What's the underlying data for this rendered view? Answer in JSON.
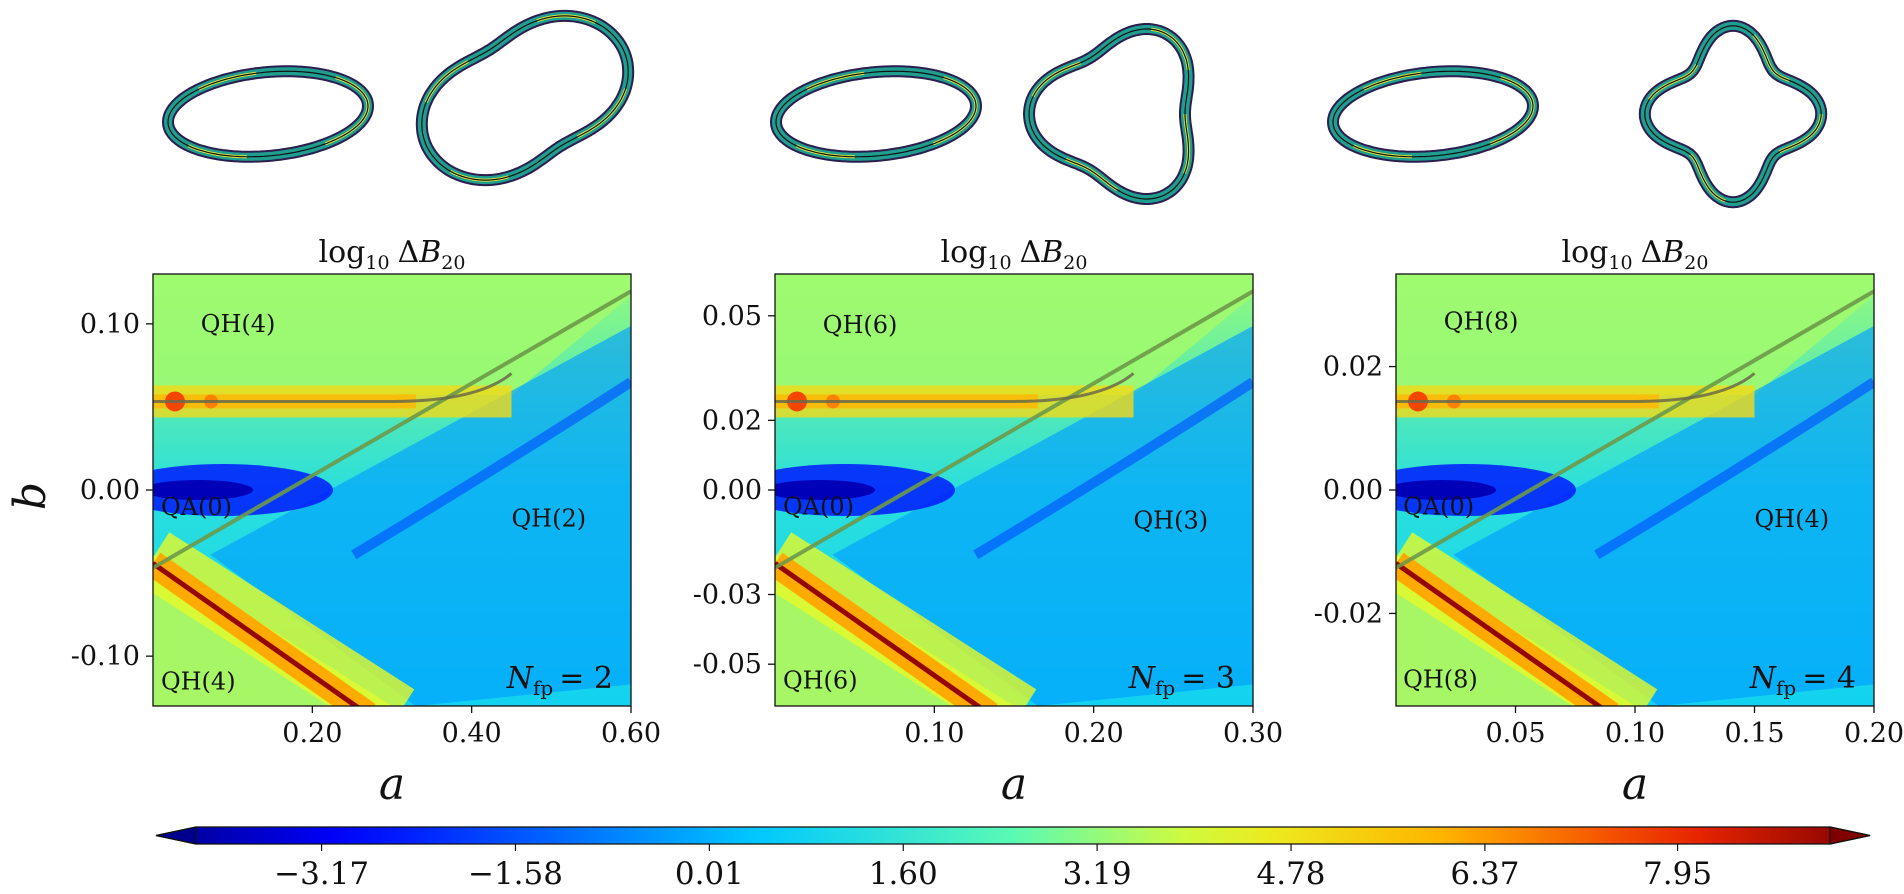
{
  "chart_data": {
    "type": "heatmap",
    "colormap": "jet",
    "colorbar": {
      "ticks": [
        "−3.17",
        "−1.58",
        "0.01",
        "1.60",
        "3.19",
        "4.78",
        "6.37",
        "7.95"
      ],
      "tick_values": [
        -3.17,
        -1.58,
        0.01,
        1.6,
        3.19,
        4.78,
        6.37,
        7.95
      ],
      "range": [
        -4.2,
        9.2
      ],
      "extend": "both"
    },
    "panels": [
      {
        "title": "log10 ΔB20",
        "title_base": "log",
        "title_sub": "10",
        "title_delta": "Δ",
        "title_var": "B",
        "title_var_sub": "20",
        "xlabel": "a",
        "ylabel": "b",
        "xlim": [
          0.0,
          0.6
        ],
        "ylim": [
          -0.13,
          0.13
        ],
        "xticks": [
          0.2,
          0.4,
          0.6
        ],
        "xtick_labels": [
          "0.20",
          "0.40",
          "0.60"
        ],
        "yticks": [
          -0.1,
          0.0,
          0.1
        ],
        "ytick_labels": [
          "-0.10",
          "0.00",
          "0.10"
        ],
        "nfp_label": "N",
        "nfp_sub": "fp",
        "nfp_value": "= 2",
        "annotations": [
          {
            "text": "QH(4)",
            "x": 0.06,
            "y": 0.095
          },
          {
            "text": "QA(0)",
            "x": 0.01,
            "y": -0.015
          },
          {
            "text": "QH(2)",
            "x": 0.45,
            "y": -0.022
          },
          {
            "text": "QH(4)",
            "x": 0.01,
            "y": -0.12
          }
        ]
      },
      {
        "title": "log10 ΔB20",
        "title_base": "log",
        "title_sub": "10",
        "title_delta": "Δ",
        "title_var": "B",
        "title_var_sub": "20",
        "xlabel": "a",
        "ylabel": "",
        "xlim": [
          0.0,
          0.3
        ],
        "ylim": [
          -0.062,
          0.062
        ],
        "xticks": [
          0.1,
          0.2,
          0.3
        ],
        "xtick_labels": [
          "0.10",
          "0.20",
          "0.30"
        ],
        "yticks": [
          -0.05,
          -0.03,
          0.0,
          0.02,
          0.05
        ],
        "ytick_labels": [
          "-0.05",
          "-0.03",
          "0.00",
          "0.02",
          "0.05"
        ],
        "nfp_label": "N",
        "nfp_sub": "fp",
        "nfp_value": "= 3",
        "annotations": [
          {
            "text": "QH(6)",
            "x": 0.03,
            "y": 0.045
          },
          {
            "text": "QA(0)",
            "x": 0.005,
            "y": -0.007
          },
          {
            "text": "QH(3)",
            "x": 0.225,
            "y": -0.011
          },
          {
            "text": "QH(6)",
            "x": 0.005,
            "y": -0.057
          }
        ]
      },
      {
        "title": "log10 ΔB20",
        "title_base": "log",
        "title_sub": "10",
        "title_delta": "Δ",
        "title_var": "B",
        "title_var_sub": "20",
        "xlabel": "a",
        "ylabel": "",
        "xlim": [
          0.0,
          0.2
        ],
        "ylim": [
          -0.035,
          0.035
        ],
        "xticks": [
          0.05,
          0.1,
          0.15,
          0.2
        ],
        "xtick_labels": [
          "0.05",
          "0.10",
          "0.15",
          "0.20"
        ],
        "yticks": [
          -0.02,
          0.0,
          0.02
        ],
        "ytick_labels": [
          "-0.02",
          "0.00",
          "0.02"
        ],
        "nfp_label": "N",
        "nfp_sub": "fp",
        "nfp_value": "= 4",
        "annotations": [
          {
            "text": "QH(8)",
            "x": 0.02,
            "y": 0.026
          },
          {
            "text": "QA(0)",
            "x": 0.003,
            "y": -0.004
          },
          {
            "text": "QH(4)",
            "x": 0.15,
            "y": -0.006
          },
          {
            "text": "QH(8)",
            "x": 0.003,
            "y": -0.032
          }
        ]
      }
    ]
  }
}
